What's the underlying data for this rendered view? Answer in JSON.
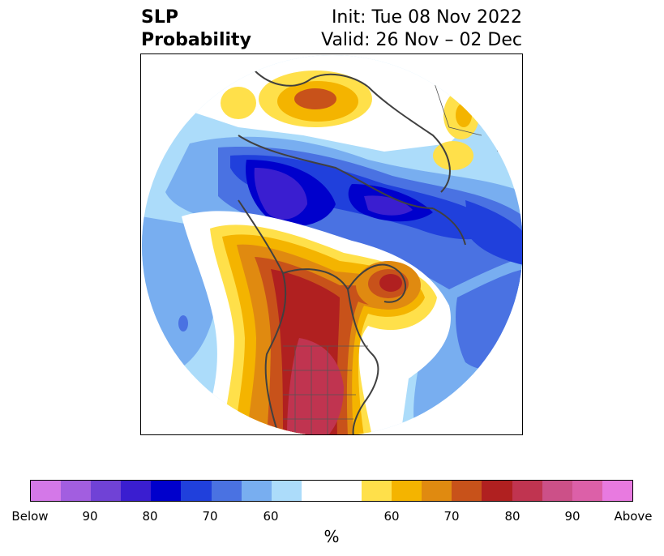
{
  "title": {
    "line1_left": "SLP",
    "line2_left": "Probability",
    "line1_right": "Init: Tue 08 Nov 2022",
    "line2_right": "Valid: 26 Nov – 02 Dec"
  },
  "colorbar": {
    "colors": [
      "#d478e8",
      "#a25ee0",
      "#7042d6",
      "#3a1ed0",
      "#0000cc",
      "#2040dc",
      "#4a72e2",
      "#78aef0",
      "#acdcfa",
      "#ffffff",
      "#ffffff",
      "#ffe04a",
      "#f4b400",
      "#e08a10",
      "#c8521a",
      "#b02020",
      "#c03450",
      "#cc5088",
      "#dc60a8",
      "#e87ae0"
    ],
    "labels": [
      "Below",
      "90",
      "80",
      "70",
      "60",
      "60",
      "70",
      "80",
      "90",
      "Above"
    ],
    "unit": "%"
  },
  "map": {
    "projection": "polar stereographic (North America)",
    "features": [
      "coastlines",
      "country borders",
      "state/province borders"
    ]
  }
}
